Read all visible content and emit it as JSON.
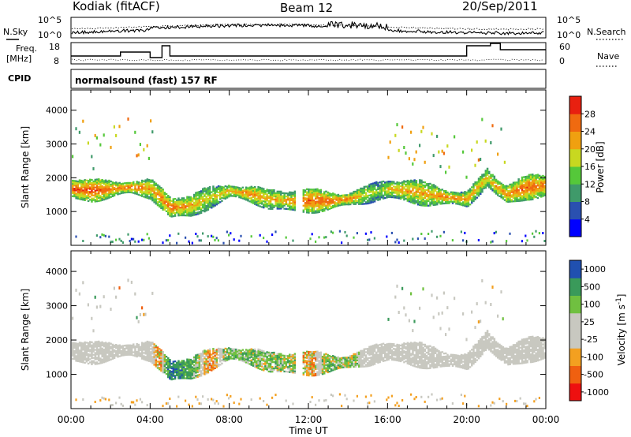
{
  "header": {
    "station": "Kodiak (fitACF)",
    "beam": "Beam 12",
    "date": "20/Sep/2011"
  },
  "left_labels": {
    "nsky": "N.Sky",
    "freq_line1": "Freq.",
    "freq_line2": "[MHz]",
    "cpid": "CPID"
  },
  "right_labels": {
    "nsearch": "N.Search",
    "nave": "Nave"
  },
  "noise_axis": {
    "top_label": "10^5",
    "bottom_label": "10^0"
  },
  "freq_axis": {
    "ticks": [
      "18",
      "8"
    ]
  },
  "nave_axis": {
    "ticks": [
      "60",
      "0"
    ]
  },
  "cpid_text": "normalsound (fast) 157 RF",
  "colors": {
    "power_scale": [
      "#0000ff",
      "#2a50b0",
      "#3f9a6a",
      "#55c83a",
      "#c8d820",
      "#f0a010",
      "#f06a10",
      "#e82010"
    ],
    "velocity_scale": [
      "#ee1010",
      "#f06010",
      "#f3a020",
      "#c8c8c0",
      "#c8c8c0",
      "#70c040",
      "#3a9a5a",
      "#2050b0"
    ],
    "ground_scatter": "#c8c8c0"
  },
  "chart_data": [
    {
      "type": "heatmap",
      "title": "",
      "xlabel": "",
      "ylabel": "Slant Range [km]",
      "x_tick_labels": [
        "00:00",
        "04:00",
        "08:00",
        "12:00",
        "16:00",
        "20:00",
        "00:00"
      ],
      "x_range_hours": [
        0,
        24
      ],
      "ylim": [
        0,
        4600
      ],
      "y_ticks": [
        1000,
        2000,
        3000,
        4000
      ],
      "colorbar": {
        "label": "Power [dB]",
        "ticks": [
          4,
          8,
          12,
          16,
          20,
          24,
          28
        ],
        "range": [
          0,
          32
        ]
      },
      "echo_band": {
        "times_h": [
          0,
          1,
          2,
          3,
          4,
          4.5,
          5,
          6,
          7,
          8,
          9,
          10,
          11,
          12,
          13,
          14,
          15,
          15.5,
          16,
          17,
          18,
          19,
          20,
          21,
          21.5,
          22,
          23,
          24
        ],
        "center_km": [
          1650,
          1600,
          1650,
          1700,
          1650,
          1400,
          1100,
          1150,
          1400,
          1600,
          1500,
          1350,
          1300,
          1300,
          1300,
          1350,
          1500,
          1600,
          1650,
          1600,
          1500,
          1400,
          1350,
          2000,
          1700,
          1500,
          1700,
          1750
        ],
        "power_db": [
          26,
          27,
          24,
          26,
          22,
          24,
          26,
          22,
          18,
          22,
          24,
          20,
          22,
          26,
          26,
          24,
          18,
          14,
          20,
          22,
          22,
          24,
          22,
          20,
          22,
          24,
          26,
          24
        ]
      }
    },
    {
      "type": "heatmap",
      "title": "",
      "xlabel": "Time UT",
      "ylabel": "Slant Range [km]",
      "x_tick_labels": [
        "00:00",
        "04:00",
        "08:00",
        "12:00",
        "16:00",
        "20:00",
        "00:00"
      ],
      "x_range_hours": [
        0,
        24
      ],
      "ylim": [
        0,
        4600
      ],
      "y_ticks": [
        1000,
        2000,
        3000,
        4000
      ],
      "colorbar": {
        "label": "Velocity [m s^-1]",
        "ticks": [
          "-1000",
          "-500",
          "-100",
          "-25",
          "25",
          "100",
          "500",
          "1000"
        ]
      },
      "echo_band": {
        "times_h": [
          0,
          1,
          2,
          3,
          4,
          4.5,
          5,
          6,
          7,
          8,
          9,
          10,
          11,
          12,
          13,
          14,
          15,
          15.5,
          16,
          17,
          18,
          19,
          20,
          21,
          21.5,
          22,
          23,
          24
        ],
        "center_km": [
          1650,
          1600,
          1650,
          1700,
          1650,
          1400,
          1100,
          1150,
          1400,
          1600,
          1500,
          1350,
          1300,
          1300,
          1300,
          1350,
          1500,
          1600,
          1650,
          1600,
          1500,
          1400,
          1350,
          2000,
          1700,
          1500,
          1700,
          1750
        ],
        "velocity_ms": [
          0,
          0,
          0,
          0,
          0,
          -150,
          600,
          300,
          -200,
          200,
          150,
          100,
          150,
          -150,
          150,
          100,
          0,
          0,
          0,
          0,
          0,
          0,
          0,
          0,
          0,
          0,
          0,
          0
        ]
      }
    }
  ]
}
